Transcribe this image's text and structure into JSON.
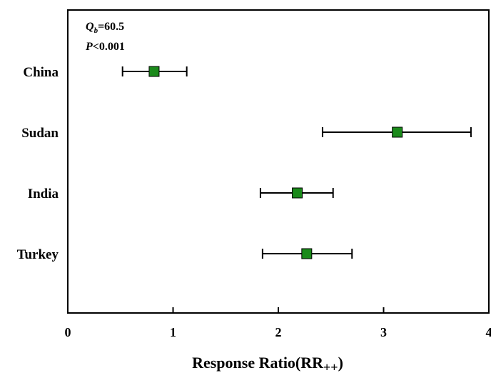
{
  "chart_data": {
    "type": "scatter",
    "subtype": "forest-plot",
    "categories": [
      "China",
      "Sudan",
      "India",
      "Turkey"
    ],
    "points": [
      {
        "label": "China",
        "value": 0.82,
        "low": 0.52,
        "high": 1.13
      },
      {
        "label": "Sudan",
        "value": 3.13,
        "low": 2.42,
        "high": 3.83
      },
      {
        "label": "India",
        "value": 2.18,
        "low": 1.83,
        "high": 2.52
      },
      {
        "label": "Turkey",
        "value": 2.27,
        "low": 1.85,
        "high": 2.7
      }
    ],
    "xlim": [
      0,
      4
    ],
    "xticks": [
      "0",
      "1",
      "2",
      "3",
      "4"
    ],
    "xlabel_main": "Response Ratio(RR",
    "xlabel_sub": "++",
    "xlabel_close": ")",
    "annotation": {
      "q_letter": "Q",
      "q_sub": "b",
      "q_value": "=60.5",
      "p_letter": "P",
      "p_value": "<0.001"
    },
    "marker_color": "#1a8a1a",
    "grid": false
  }
}
